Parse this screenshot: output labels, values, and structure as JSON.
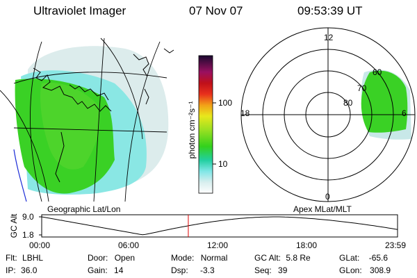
{
  "header": {
    "instrument": "Ultraviolet Imager",
    "date": "07 Nov 07",
    "time": "09:53:39 UT"
  },
  "colorbar": {
    "unit_label": "photon cm⁻²s⁻¹",
    "ticks": [
      "100",
      "10"
    ]
  },
  "polar_plot": {
    "mlt_labels": {
      "top": "12",
      "left": "18",
      "right": "6",
      "bottom": "0"
    },
    "mlat_labels": [
      "60",
      "70",
      "80"
    ]
  },
  "map_captions": {
    "left": "Geographic Lat/Lon",
    "right": "Apex MLat/MLT"
  },
  "orbit_plot": {
    "y_label": "GC Alt",
    "y_ticks": [
      "9.0",
      "1.8"
    ],
    "x_ticks": [
      "00:00",
      "06:00",
      "12:00",
      "18:00",
      "23:59"
    ],
    "current_time_fraction": 0.412,
    "line_color": "#000000",
    "marker_color": "#e00000"
  },
  "info": {
    "flt_label": "Flt:",
    "flt_value": "LBHL",
    "ip_label": "IP:",
    "ip_value": "36.0",
    "door_label": "Door:",
    "door_value": "Open",
    "gain_label": "Gain:",
    "gain_value": "14",
    "mode_label": "Mode:",
    "mode_value": "Normal",
    "dsp_label": "Dsp:",
    "dsp_value": "-3.3",
    "gcalt_label": "GC Alt:",
    "gcalt_value": "5.8 Re",
    "seq_label": "Seq:",
    "seq_value": "39",
    "glat_label": "GLat:",
    "glat_value": "-65.6",
    "glon_label": "GLon:",
    "glon_value": "308.9"
  },
  "colors": {
    "aurora_green": "#33d11c",
    "aurora_cyan": "#7fe6e6",
    "aurora_pale": "#d8ecec",
    "coast": "#000000",
    "terminator": "#1a2ad6"
  }
}
